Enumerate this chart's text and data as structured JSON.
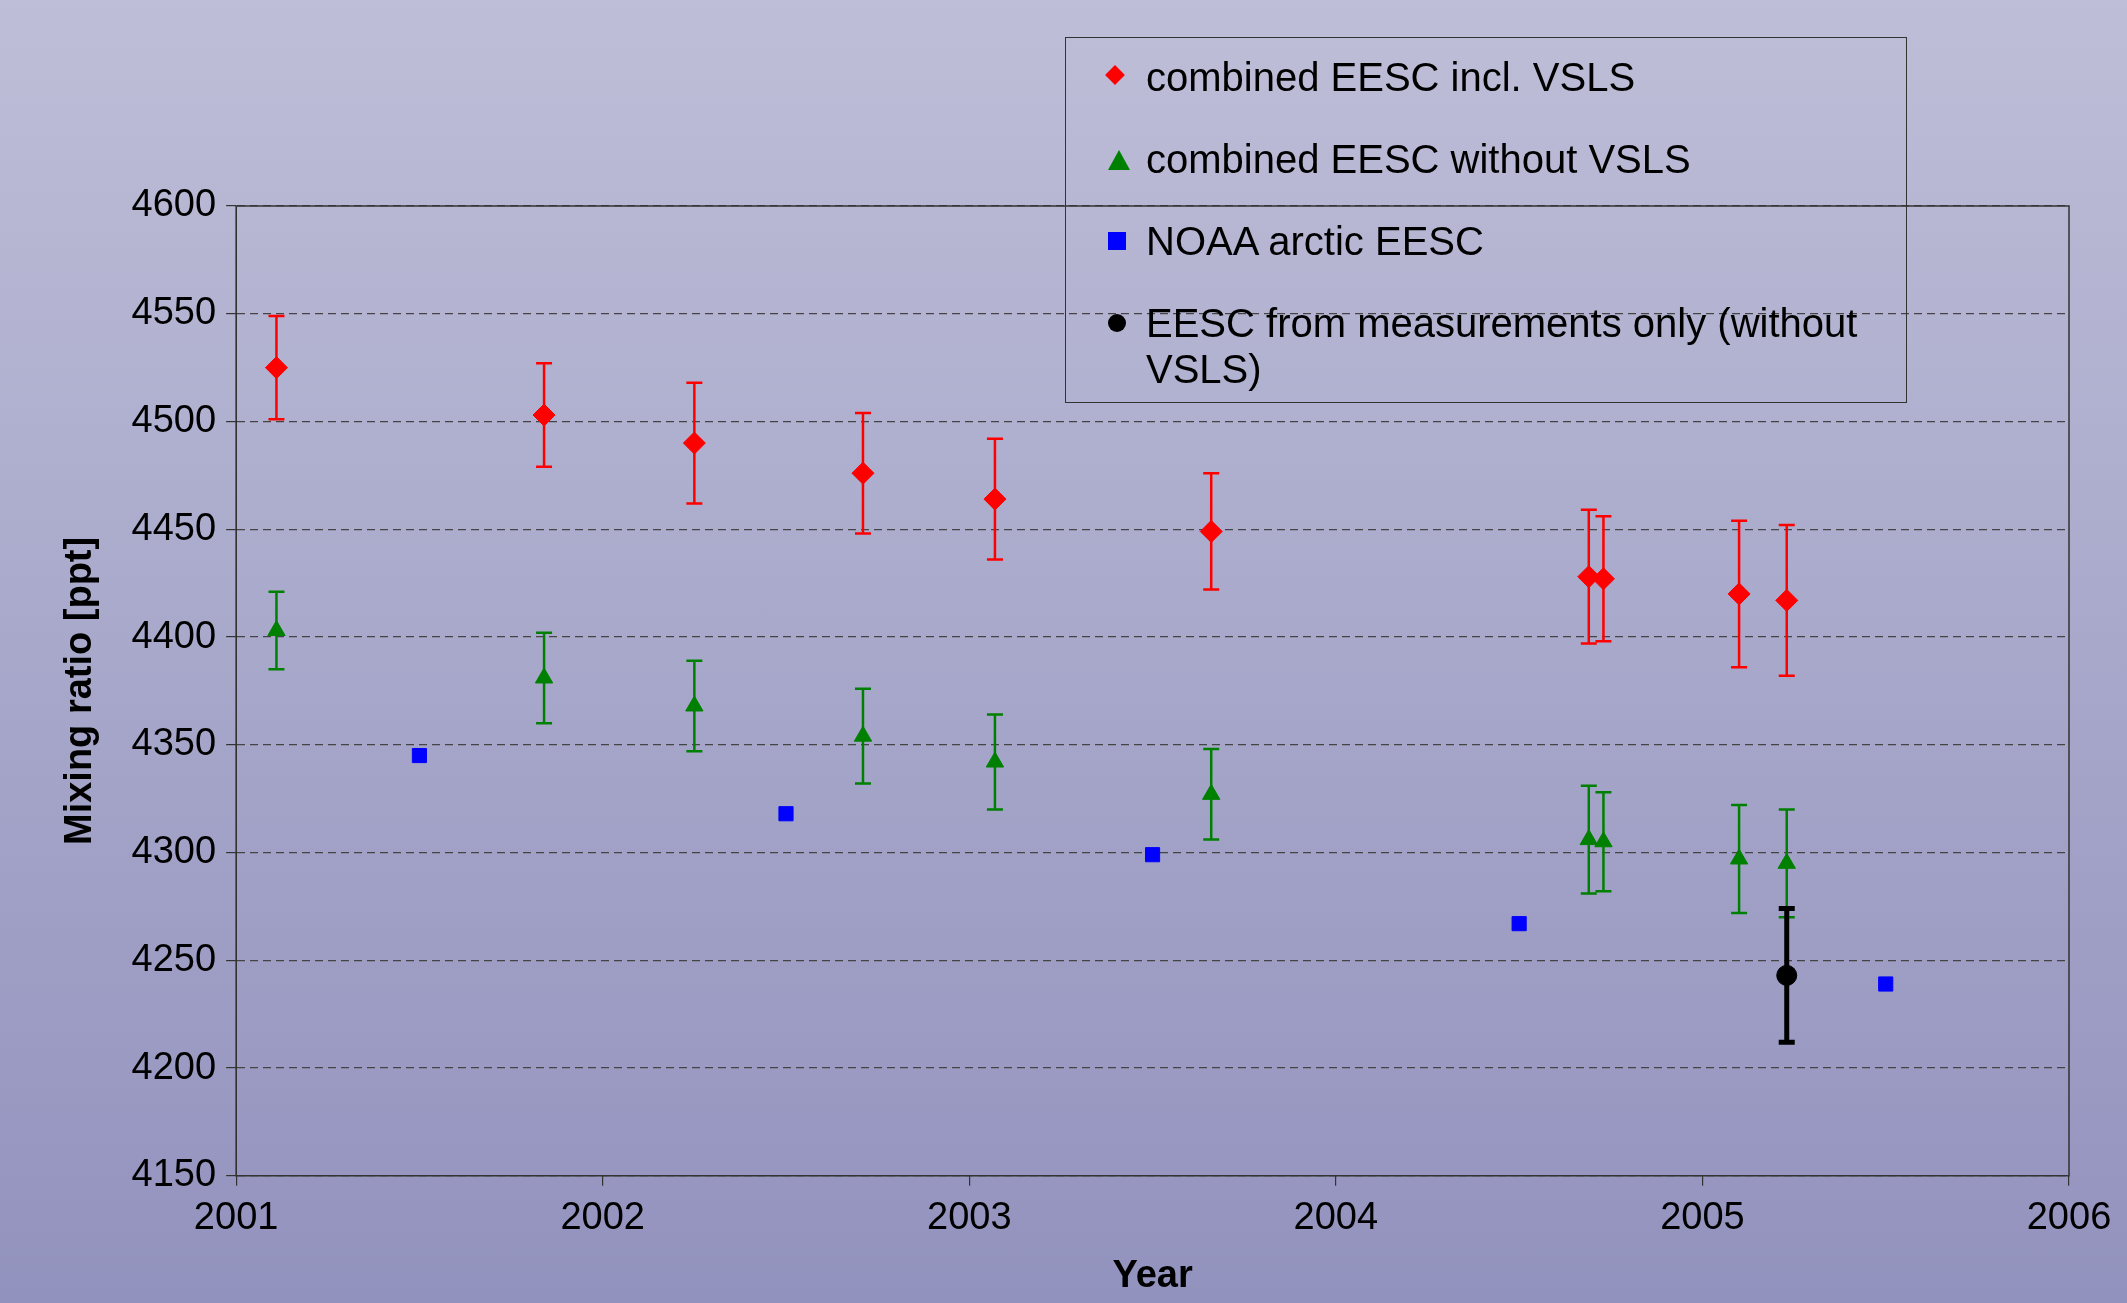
{
  "chart_data": {
    "type": "scatter",
    "xlabel": "Year",
    "ylabel": "Mixing ratio [ppt]",
    "xlim": [
      2001,
      2006
    ],
    "xticks": [
      2001,
      2002,
      2003,
      2004,
      2005,
      2006
    ],
    "ylim": [
      4150,
      4600
    ],
    "yticks": [
      4150,
      4200,
      4250,
      4300,
      4350,
      4400,
      4450,
      4500,
      4550,
      4600
    ],
    "grid": "y",
    "legend": "top right",
    "series": [
      {
        "name": "combined EESC incl. VSLS",
        "color": "#ff0000",
        "marker": "diamond",
        "x": [
          2001.11,
          2001.84,
          2002.25,
          2002.71,
          2003.07,
          2003.66,
          2004.69,
          2004.73,
          2005.1,
          2005.23
        ],
        "values": [
          4525,
          4503,
          4490,
          4476,
          4464,
          4449,
          4428,
          4427,
          4420,
          4417
        ],
        "errors": [
          24,
          24,
          28,
          28,
          28,
          27,
          31,
          29,
          34,
          35
        ]
      },
      {
        "name": "combined EESC without VSLS",
        "color": "#008000",
        "marker": "triangle",
        "x": [
          2001.11,
          2001.84,
          2002.25,
          2002.71,
          2003.07,
          2003.66,
          2004.69,
          2004.73,
          2005.1,
          2005.23
        ],
        "values": [
          4403,
          4381,
          4368,
          4354,
          4342,
          4327,
          4306,
          4305,
          4297,
          4295
        ],
        "errors": [
          18,
          21,
          21,
          22,
          22,
          21,
          25,
          23,
          25,
          25
        ]
      },
      {
        "name": "NOAA arctic EESC",
        "color": "#0000ff",
        "marker": "square",
        "x": [
          2001.5,
          2002.5,
          2003.5,
          2004.5,
          2005.5
        ],
        "values": [
          4345,
          4318,
          4299,
          4267,
          4239
        ]
      },
      {
        "name": "EESC from measurements only (without VSLS)",
        "color": "#000000",
        "marker": "circle",
        "x": [
          2005.23
        ],
        "values": [
          4243
        ],
        "errors": [
          31
        ]
      }
    ]
  }
}
